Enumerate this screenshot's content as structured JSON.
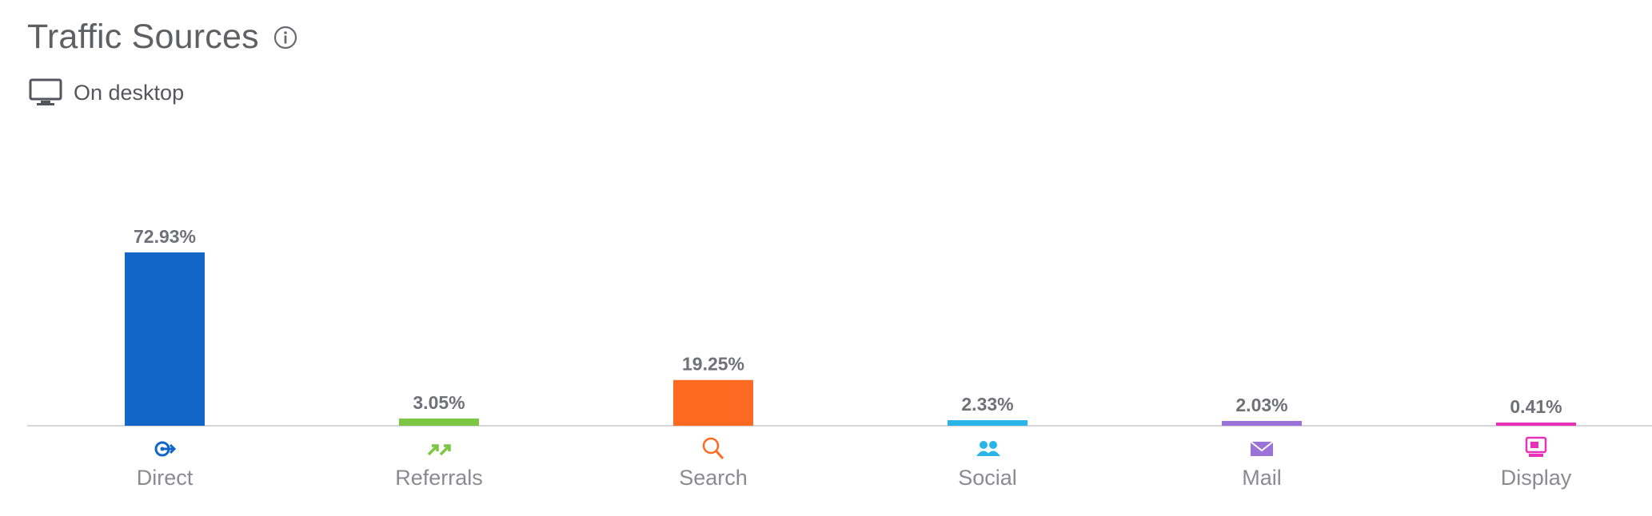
{
  "widget": {
    "title": "Traffic Sources",
    "subtitle": "On desktop",
    "icons": {
      "info": "info-icon",
      "device": "desktop-icon"
    }
  },
  "chart_data": {
    "type": "bar",
    "title": "Traffic Sources",
    "xlabel": "",
    "ylabel": "",
    "ylim": [
      0,
      100
    ],
    "grid": false,
    "legend": "none",
    "categories": [
      "Direct",
      "Referrals",
      "Search",
      "Social",
      "Mail",
      "Display"
    ],
    "values": [
      72.93,
      3.05,
      19.25,
      2.33,
      2.03,
      0.41
    ],
    "value_labels": [
      "72.93%",
      "3.05%",
      "19.25%",
      "2.33%",
      "2.03%",
      "0.41%"
    ],
    "colors": [
      "#1166c8",
      "#7cc644",
      "#ff6a22",
      "#29b5e8",
      "#9a72d8",
      "#e830b8"
    ],
    "category_icons": [
      "direct-icon",
      "referrals-icon",
      "search-icon",
      "social-icon",
      "mail-icon",
      "display-icon"
    ]
  }
}
